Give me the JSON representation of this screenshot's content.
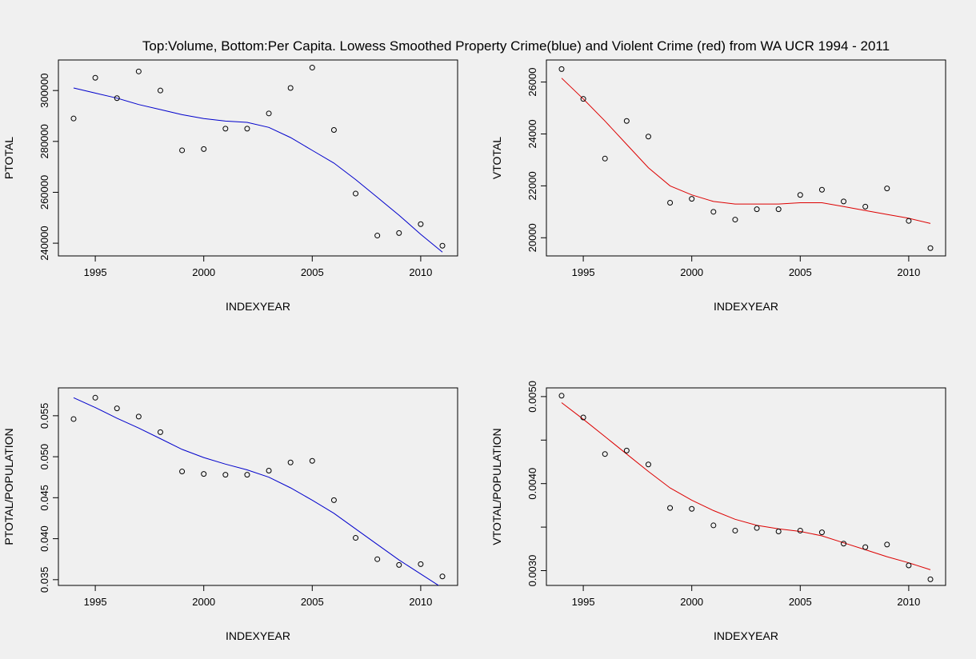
{
  "figure_title": "Top:Volume, Bottom:Per Capita. Lowess Smoothed Property Crime(blue) and Violent Crime (red) from WA UCR 1994 - 2011",
  "colors": {
    "background": "#f0f0f0",
    "property": "#0000cc",
    "violent": "#dd0000",
    "axis": "#000000"
  },
  "chart_data": [
    {
      "id": "ptotal",
      "type": "scatter",
      "xlabel": "INDEXYEAR",
      "ylabel": "PTOTAL",
      "xlim": [
        1993.3,
        2011.7
      ],
      "ylim": [
        235000,
        312000
      ],
      "xticks": [
        1995,
        2000,
        2005,
        2010
      ],
      "xtick_labels": [
        "1995",
        "2000",
        "2005",
        "2010"
      ],
      "yticks": [
        240000,
        260000,
        280000,
        300000
      ],
      "ytick_labels": [
        "240000",
        "260000",
        "280000",
        "300000"
      ],
      "points_x": [
        1994,
        1995,
        1996,
        1997,
        1998,
        1999,
        2000,
        2001,
        2002,
        2003,
        2004,
        2005,
        2006,
        2007,
        2008,
        2009,
        2010,
        2011
      ],
      "points_y": [
        289000,
        305000,
        297000,
        307500,
        300000,
        276500,
        277000,
        285000,
        285000,
        291000,
        301000,
        309000,
        284500,
        259500,
        243000,
        244000,
        247500,
        239000
      ],
      "lowess_color": "#0000cc",
      "lowess_x": [
        1994,
        1995,
        1996,
        1997,
        1998,
        1999,
        2000,
        2001,
        2002,
        2003,
        2004,
        2005,
        2006,
        2007,
        2008,
        2009,
        2010,
        2011
      ],
      "lowess_y": [
        301000,
        299000,
        297000,
        294500,
        292500,
        290500,
        289000,
        288000,
        287500,
        285500,
        281500,
        276500,
        271500,
        265000,
        258000,
        251000,
        243500,
        236500
      ]
    },
    {
      "id": "vtotal",
      "type": "scatter",
      "xlabel": "INDEXYEAR",
      "ylabel": "VTOTAL",
      "xlim": [
        1993.3,
        2011.7
      ],
      "ylim": [
        19300,
        26850
      ],
      "xticks": [
        1995,
        2000,
        2005,
        2010
      ],
      "xtick_labels": [
        "1995",
        "2000",
        "2005",
        "2010"
      ],
      "yticks": [
        20000,
        22000,
        24000,
        26000
      ],
      "ytick_labels": [
        "20000",
        "22000",
        "24000",
        "26000"
      ],
      "points_x": [
        1994,
        1995,
        1996,
        1997,
        1998,
        1999,
        2000,
        2001,
        2002,
        2003,
        2004,
        2005,
        2006,
        2007,
        2008,
        2009,
        2010,
        2011
      ],
      "points_y": [
        26500,
        25350,
        23050,
        24500,
        23900,
        21350,
        21500,
        21000,
        20700,
        21100,
        21100,
        21650,
        21850,
        21400,
        21200,
        21900,
        20650,
        19600
      ],
      "lowess_color": "#dd0000",
      "lowess_x": [
        1994,
        1995,
        1996,
        1997,
        1998,
        1999,
        2000,
        2001,
        2002,
        2003,
        2004,
        2005,
        2006,
        2007,
        2008,
        2009,
        2010,
        2011
      ],
      "lowess_y": [
        26150,
        25350,
        24500,
        23600,
        22700,
        22000,
        21650,
        21400,
        21300,
        21300,
        21300,
        21350,
        21350,
        21200,
        21050,
        20900,
        20750,
        20550
      ]
    },
    {
      "id": "ppercap",
      "type": "scatter",
      "xlabel": "INDEXYEAR",
      "ylabel": "PTOTAL/POPULATION",
      "xlim": [
        1993.3,
        2011.7
      ],
      "ylim": [
        0.0343,
        0.0584
      ],
      "xticks": [
        1995,
        2000,
        2005,
        2010
      ],
      "xtick_labels": [
        "1995",
        "2000",
        "2005",
        "2010"
      ],
      "yticks": [
        0.035,
        0.04,
        0.045,
        0.05,
        0.055
      ],
      "ytick_labels": [
        "0.035",
        "0.040",
        "0.045",
        "0.050",
        "0.055"
      ],
      "points_x": [
        1994,
        1995,
        1996,
        1997,
        1998,
        1999,
        2000,
        2001,
        2002,
        2003,
        2004,
        2005,
        2006,
        2007,
        2008,
        2009,
        2010,
        2011
      ],
      "points_y": [
        0.0546,
        0.0572,
        0.0559,
        0.0549,
        0.053,
        0.0482,
        0.0479,
        0.0478,
        0.0478,
        0.0483,
        0.0493,
        0.0495,
        0.0447,
        0.0401,
        0.0375,
        0.0368,
        0.0369,
        0.0354
      ],
      "lowess_color": "#0000cc",
      "lowess_x": [
        1994,
        1995,
        1996,
        1997,
        1998,
        1999,
        2000,
        2001,
        2002,
        2003,
        2004,
        2005,
        2006,
        2007,
        2008,
        2009,
        2010,
        2011
      ],
      "lowess_y": [
        0.0572,
        0.056,
        0.0547,
        0.0535,
        0.0522,
        0.0509,
        0.0499,
        0.0491,
        0.0484,
        0.0475,
        0.0462,
        0.0447,
        0.0431,
        0.0412,
        0.0393,
        0.0374,
        0.0357,
        0.034
      ]
    },
    {
      "id": "vpercap",
      "type": "scatter",
      "xlabel": "INDEXYEAR",
      "ylabel": "VTOTAL/POPULATION",
      "xlim": [
        1993.3,
        2011.7
      ],
      "ylim": [
        0.00283,
        0.0051
      ],
      "xticks": [
        1995,
        2000,
        2005,
        2010
      ],
      "xtick_labels": [
        "1995",
        "2000",
        "2005",
        "2010"
      ],
      "yticks": [
        0.003,
        0.0035,
        0.004,
        0.0045,
        0.005
      ],
      "ytick_labels": [
        "0.0030",
        "",
        "0.0040",
        "",
        "0.0050"
      ],
      "points_x": [
        1994,
        1995,
        1996,
        1997,
        1998,
        1999,
        2000,
        2001,
        2002,
        2003,
        2004,
        2005,
        2006,
        2007,
        2008,
        2009,
        2010,
        2011
      ],
      "points_y": [
        0.00501,
        0.00476,
        0.00434,
        0.00438,
        0.00422,
        0.00372,
        0.00371,
        0.00352,
        0.00346,
        0.00349,
        0.00345,
        0.00346,
        0.00344,
        0.00331,
        0.00327,
        0.0033,
        0.00306,
        0.0029
      ],
      "lowess_color": "#dd0000",
      "lowess_x": [
        1994,
        1995,
        1996,
        1997,
        1998,
        1999,
        2000,
        2001,
        2002,
        2003,
        2004,
        2005,
        2006,
        2007,
        2008,
        2009,
        2010,
        2011
      ],
      "lowess_y": [
        0.00493,
        0.00474,
        0.00454,
        0.00434,
        0.00414,
        0.00395,
        0.00381,
        0.00369,
        0.00359,
        0.00352,
        0.00348,
        0.00345,
        0.0034,
        0.00332,
        0.00324,
        0.00316,
        0.00309,
        0.00301
      ]
    }
  ]
}
